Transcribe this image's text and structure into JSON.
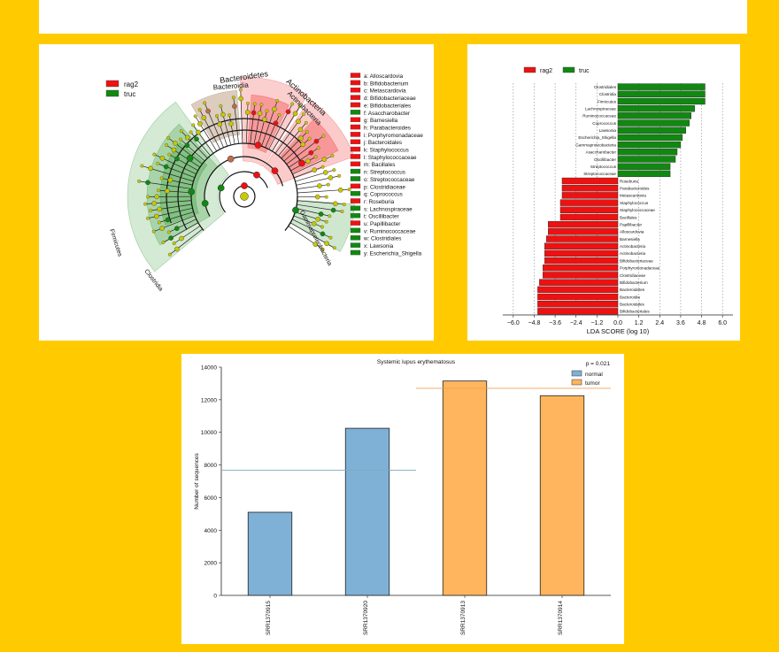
{
  "background_color": "#FFCB00",
  "colors": {
    "red": "#EE1111",
    "green": "#118811",
    "normal": "#7FB1D6",
    "tumor": "#FFB55E"
  },
  "chart_data": [
    {
      "type": "cladogram",
      "legend": {
        "position": "top-left",
        "entries": [
          {
            "name": "rag2",
            "color": "#EE1111"
          },
          {
            "name": "truc",
            "color": "#118811"
          }
        ]
      },
      "clade_labels": [
        "Bacteroidetes",
        "Bacteroidia",
        "Actinobacteria",
        "Actinobacteria",
        "Gammaproteobacteria",
        "Firmicutes",
        "Clostridia"
      ],
      "key": [
        {
          "code": "a",
          "name": "Alloscardovia",
          "group": "rag2"
        },
        {
          "code": "b",
          "name": "Bifidobacterium",
          "group": "rag2"
        },
        {
          "code": "c",
          "name": "Metascardovia",
          "group": "rag2"
        },
        {
          "code": "d",
          "name": "Bifidobacteriaceae",
          "group": "rag2"
        },
        {
          "code": "e",
          "name": "Bifidobacteriales",
          "group": "rag2"
        },
        {
          "code": "f",
          "name": "Asaccharobacter",
          "group": "truc"
        },
        {
          "code": "g",
          "name": "Barnesiella",
          "group": "rag2"
        },
        {
          "code": "h",
          "name": "Parabacteroides",
          "group": "rag2"
        },
        {
          "code": "i",
          "name": "Porphyromonadaceae",
          "group": "rag2"
        },
        {
          "code": "j",
          "name": "Bacteroidales",
          "group": "rag2"
        },
        {
          "code": "k",
          "name": "Staphylococcus",
          "group": "rag2"
        },
        {
          "code": "l",
          "name": "Staphylococcaceae",
          "group": "rag2"
        },
        {
          "code": "m",
          "name": "Bacillales",
          "group": "rag2"
        },
        {
          "code": "n",
          "name": "Streptococcus",
          "group": "truc"
        },
        {
          "code": "o",
          "name": "Streptococcaceae",
          "group": "truc"
        },
        {
          "code": "p",
          "name": "Clostridiaceae",
          "group": "rag2"
        },
        {
          "code": "q",
          "name": "Coprococcus",
          "group": "truc"
        },
        {
          "code": "r",
          "name": "Roseburia",
          "group": "rag2"
        },
        {
          "code": "s",
          "name": "Lachnospiraceae",
          "group": "truc"
        },
        {
          "code": "t",
          "name": "Oscillibacter",
          "group": "truc"
        },
        {
          "code": "u",
          "name": "Papillibacter",
          "group": "rag2"
        },
        {
          "code": "v",
          "name": "Ruminococcaceae",
          "group": "truc"
        },
        {
          "code": "w",
          "name": "Clostridiales",
          "group": "truc"
        },
        {
          "code": "x",
          "name": "Lawsonia",
          "group": "truc"
        },
        {
          "code": "y",
          "name": "Escherichia_Shigella",
          "group": "truc"
        }
      ]
    },
    {
      "type": "bar",
      "orientation": "horizontal",
      "legend": {
        "position": "top-left",
        "entries": [
          {
            "name": "rag2",
            "color": "#EE1111"
          },
          {
            "name": "truc",
            "color": "#118811"
          }
        ]
      },
      "xlabel": "LDA SCORE (log 10)",
      "xlim": [
        -6.6,
        6.6
      ],
      "xticks": [
        "−6.0",
        "−4.8",
        "−3.6",
        "−2.4",
        "−1.2",
        "0.0",
        "1.2",
        "2.4",
        "3.6",
        "4.8",
        "6.0"
      ],
      "grid": true,
      "bars": [
        {
          "label": "Clostridiales",
          "value": 5.0,
          "group": "truc"
        },
        {
          "label": "Clostridia",
          "value": 5.0,
          "group": "truc"
        },
        {
          "label": "Firmicutes",
          "value": 5.0,
          "group": "truc"
        },
        {
          "label": "Lachnospiraceae",
          "value": 4.4,
          "group": "truc"
        },
        {
          "label": "Ruminococcaceae",
          "value": 4.2,
          "group": "truc"
        },
        {
          "label": "Coprococcus",
          "value": 4.1,
          "group": "truc"
        },
        {
          "label": "Lawsonia",
          "value": 3.9,
          "group": "truc"
        },
        {
          "label": "Escherichia_Shigella",
          "value": 3.7,
          "group": "truc"
        },
        {
          "label": "Gammaproteobacteria",
          "value": 3.6,
          "group": "truc"
        },
        {
          "label": "Asaccharobacter",
          "value": 3.4,
          "group": "truc"
        },
        {
          "label": "Oscillibacter",
          "value": 3.3,
          "group": "truc"
        },
        {
          "label": "Streptococcus",
          "value": 3.0,
          "group": "truc"
        },
        {
          "label": "Streptococcaceae",
          "value": 3.0,
          "group": "truc"
        },
        {
          "label": "Roseburia",
          "value": -3.2,
          "group": "rag2"
        },
        {
          "label": "Parabacteroides",
          "value": -3.2,
          "group": "rag2"
        },
        {
          "label": "Metascardovia",
          "value": -3.2,
          "group": "rag2"
        },
        {
          "label": "Staphylococcus",
          "value": -3.3,
          "group": "rag2"
        },
        {
          "label": "Staphylococcaceae",
          "value": -3.3,
          "group": "rag2"
        },
        {
          "label": "Bacillales",
          "value": -3.3,
          "group": "rag2"
        },
        {
          "label": "Papillibacter",
          "value": -4.0,
          "group": "rag2"
        },
        {
          "label": "Alloscardovia",
          "value": -4.0,
          "group": "rag2"
        },
        {
          "label": "Barnesiella",
          "value": -4.1,
          "group": "rag2"
        },
        {
          "label": "Actinobacteria",
          "value": -4.2,
          "group": "rag2"
        },
        {
          "label": "Actinobacteria",
          "value": -4.2,
          "group": "rag2"
        },
        {
          "label": "Bifidobacteriaceae",
          "value": -4.2,
          "group": "rag2"
        },
        {
          "label": "Porphyromonadaceae",
          "value": -4.3,
          "group": "rag2"
        },
        {
          "label": "Clostridiaceae",
          "value": -4.3,
          "group": "rag2"
        },
        {
          "label": "Bifidobacterium",
          "value": -4.5,
          "group": "rag2"
        },
        {
          "label": "Bacteroidetes",
          "value": -4.6,
          "group": "rag2"
        },
        {
          "label": "Bacteroidia",
          "value": -4.6,
          "group": "rag2"
        },
        {
          "label": "Bacteroidales",
          "value": -4.6,
          "group": "rag2"
        },
        {
          "label": "Bifidobacteriales",
          "value": -4.6,
          "group": "rag2"
        }
      ]
    },
    {
      "type": "bar",
      "title": "Systemic lupus erythematosus",
      "annotation": "p = 0.021",
      "ylabel": "Number of sequences",
      "ylim": [
        0,
        14000
      ],
      "yticks": [
        0,
        2000,
        4000,
        6000,
        8000,
        10000,
        12000,
        14000
      ],
      "categories": [
        "SRR1370915",
        "SRR1370920",
        "SRR1370913",
        "SRR1370914"
      ],
      "values": [
        5100,
        10250,
        13150,
        12250
      ],
      "groups": [
        "normal",
        "normal",
        "tumor",
        "tumor"
      ],
      "group_means": {
        "normal": 7675,
        "tumor": 12700
      },
      "legend": {
        "position": "top-right",
        "entries": [
          {
            "name": "normal",
            "color": "#7FB1D6"
          },
          {
            "name": "tumor",
            "color": "#FFB55E"
          }
        ]
      }
    }
  ]
}
